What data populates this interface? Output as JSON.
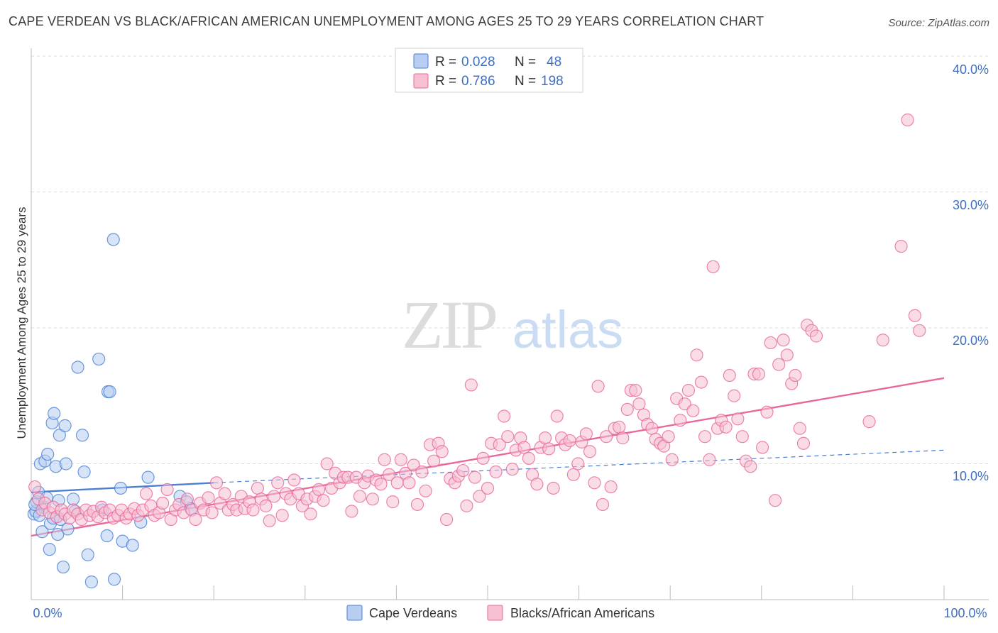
{
  "title": "CAPE VERDEAN VS BLACK/AFRICAN AMERICAN UNEMPLOYMENT AMONG AGES 25 TO 29 YEARS CORRELATION CHART",
  "source": "Source: ZipAtlas.com",
  "watermark": {
    "zip": "ZIP",
    "atlas": "atlas"
  },
  "colors": {
    "blue": "#4a7fd4",
    "blue_fill": "#b7cdf2",
    "pink": "#e8689b",
    "pink_fill": "#f6bfd2",
    "axis_label": "#3f6fc1",
    "grid": "#d9d9d9"
  },
  "chart_data": {
    "type": "scatter",
    "title": "CAPE VERDEAN VS BLACK/AFRICAN AMERICAN UNEMPLOYMENT AMONG AGES 25 TO 29 YEARS CORRELATION CHART",
    "xlabel": "",
    "ylabel": "Unemployment Among Ages 25 to 29 years",
    "xlim": [
      0,
      100
    ],
    "ylim": [
      0,
      40
    ],
    "x_tick_labels": [
      "0.0%",
      "100.0%"
    ],
    "y_ticks": [
      10,
      20,
      30,
      40
    ],
    "y_tick_labels": [
      "10.0%",
      "20.0%",
      "30.0%",
      "40.0%"
    ],
    "legend": [
      {
        "label": "R =",
        "r": "0.028",
        "n_label": "N =",
        "n": "48"
      },
      {
        "label": "R =",
        "r": "0.786",
        "n_label": "N =",
        "n": "198"
      }
    ],
    "series": [
      {
        "name": "Cape Verdeans",
        "color": "blue",
        "trend": {
          "x": [
            0,
            20
          ],
          "y": [
            7.9,
            8.6
          ]
        },
        "trend_extended": {
          "x": [
            20,
            100
          ],
          "y": [
            8.6,
            11.0
          ]
        },
        "points": [
          [
            0.3,
            6.3
          ],
          [
            0.5,
            6.5
          ],
          [
            0.6,
            7.2
          ],
          [
            0.8,
            7.9
          ],
          [
            1.0,
            10.0
          ],
          [
            1.2,
            5.0
          ],
          [
            1.4,
            6.8
          ],
          [
            1.5,
            10.2
          ],
          [
            1.7,
            7.5
          ],
          [
            1.8,
            10.7
          ],
          [
            2.0,
            3.7
          ],
          [
            2.1,
            5.6
          ],
          [
            2.3,
            13.0
          ],
          [
            2.4,
            6.0
          ],
          [
            2.5,
            13.7
          ],
          [
            2.7,
            9.8
          ],
          [
            2.9,
            4.8
          ],
          [
            3.1,
            12.1
          ],
          [
            3.2,
            5.9
          ],
          [
            3.5,
            2.4
          ],
          [
            3.7,
            12.8
          ],
          [
            3.8,
            10.0
          ],
          [
            4.0,
            5.2
          ],
          [
            4.6,
            7.4
          ],
          [
            5.1,
            17.1
          ],
          [
            5.6,
            12.1
          ],
          [
            5.8,
            9.4
          ],
          [
            6.2,
            3.3
          ],
          [
            6.6,
            1.3
          ],
          [
            7.4,
            17.7
          ],
          [
            7.8,
            6.6
          ],
          [
            8.3,
            4.7
          ],
          [
            8.4,
            15.3
          ],
          [
            8.6,
            15.3
          ],
          [
            9.0,
            26.5
          ],
          [
            9.1,
            1.5
          ],
          [
            9.8,
            8.2
          ],
          [
            10.0,
            4.3
          ],
          [
            11.1,
            4.0
          ],
          [
            12.0,
            5.7
          ],
          [
            12.8,
            9.0
          ],
          [
            16.3,
            7.6
          ],
          [
            17.0,
            7.2
          ],
          [
            17.5,
            6.7
          ],
          [
            0.9,
            6.2
          ],
          [
            4.8,
            6.5
          ],
          [
            0.4,
            7.0
          ],
          [
            3.0,
            7.3
          ]
        ]
      },
      {
        "name": "Blacks/African Americans",
        "color": "pink",
        "trend": {
          "x": [
            0,
            100
          ],
          "y": [
            4.7,
            16.3
          ]
        },
        "points": [
          [
            0.4,
            8.3
          ],
          [
            0.8,
            7.4
          ],
          [
            1.2,
            6.6
          ],
          [
            1.5,
            7.1
          ],
          [
            2.0,
            6.4
          ],
          [
            2.4,
            6.8
          ],
          [
            2.8,
            6.1
          ],
          [
            3.3,
            6.6
          ],
          [
            3.7,
            6.3
          ],
          [
            4.2,
            6.0
          ],
          [
            4.6,
            6.6
          ],
          [
            5.1,
            6.3
          ],
          [
            5.5,
            5.9
          ],
          [
            6.0,
            6.6
          ],
          [
            6.4,
            6.2
          ],
          [
            6.8,
            6.5
          ],
          [
            7.3,
            6.1
          ],
          [
            7.7,
            6.8
          ],
          [
            8.1,
            6.4
          ],
          [
            8.6,
            6.6
          ],
          [
            9.0,
            6.0
          ],
          [
            9.5,
            6.2
          ],
          [
            9.9,
            6.6
          ],
          [
            10.4,
            6.0
          ],
          [
            10.8,
            6.3
          ],
          [
            11.3,
            6.7
          ],
          [
            11.7,
            6.2
          ],
          [
            12.2,
            6.6
          ],
          [
            12.6,
            7.8
          ],
          [
            13.1,
            6.9
          ],
          [
            13.5,
            6.2
          ],
          [
            14.0,
            6.4
          ],
          [
            14.4,
            7.1
          ],
          [
            14.9,
            8.1
          ],
          [
            15.3,
            5.9
          ],
          [
            15.8,
            6.6
          ],
          [
            16.2,
            7.0
          ],
          [
            16.7,
            6.4
          ],
          [
            17.1,
            7.4
          ],
          [
            17.6,
            6.6
          ],
          [
            18.0,
            5.9
          ],
          [
            18.5,
            7.1
          ],
          [
            18.9,
            6.6
          ],
          [
            19.4,
            7.5
          ],
          [
            19.8,
            6.4
          ],
          [
            20.3,
            8.6
          ],
          [
            20.7,
            7.1
          ],
          [
            21.2,
            7.8
          ],
          [
            21.6,
            6.6
          ],
          [
            22.1,
            7.0
          ],
          [
            22.5,
            6.6
          ],
          [
            23.0,
            7.6
          ],
          [
            23.4,
            6.7
          ],
          [
            23.9,
            7.2
          ],
          [
            24.3,
            6.6
          ],
          [
            24.8,
            8.2
          ],
          [
            25.2,
            7.4
          ],
          [
            25.7,
            6.9
          ],
          [
            26.1,
            5.8
          ],
          [
            26.6,
            7.6
          ],
          [
            27.0,
            8.6
          ],
          [
            27.5,
            6.2
          ],
          [
            27.9,
            7.8
          ],
          [
            28.4,
            7.4
          ],
          [
            28.8,
            8.8
          ],
          [
            29.3,
            7.8
          ],
          [
            29.7,
            6.9
          ],
          [
            30.2,
            7.4
          ],
          [
            30.6,
            6.3
          ],
          [
            31.1,
            7.6
          ],
          [
            31.5,
            8.1
          ],
          [
            32.0,
            7.3
          ],
          [
            32.4,
            10.0
          ],
          [
            32.9,
            8.2
          ],
          [
            33.3,
            9.3
          ],
          [
            33.8,
            8.6
          ],
          [
            34.2,
            9.0
          ],
          [
            34.7,
            9.0
          ],
          [
            35.1,
            6.5
          ],
          [
            35.6,
            9.0
          ],
          [
            36.0,
            7.6
          ],
          [
            36.5,
            8.6
          ],
          [
            36.9,
            9.1
          ],
          [
            37.4,
            7.4
          ],
          [
            37.8,
            8.8
          ],
          [
            38.3,
            8.5
          ],
          [
            38.7,
            10.3
          ],
          [
            39.2,
            9.2
          ],
          [
            39.6,
            7.2
          ],
          [
            40.1,
            8.6
          ],
          [
            40.5,
            10.3
          ],
          [
            41.0,
            9.3
          ],
          [
            41.4,
            8.6
          ],
          [
            41.9,
            9.9
          ],
          [
            42.3,
            7.0
          ],
          [
            42.8,
            9.4
          ],
          [
            43.2,
            8.0
          ],
          [
            43.7,
            11.4
          ],
          [
            44.1,
            10.2
          ],
          [
            44.6,
            11.5
          ],
          [
            45.0,
            10.9
          ],
          [
            45.5,
            5.9
          ],
          [
            45.9,
            8.9
          ],
          [
            46.4,
            8.6
          ],
          [
            46.8,
            9.1
          ],
          [
            47.3,
            9.5
          ],
          [
            47.7,
            6.9
          ],
          [
            48.2,
            15.8
          ],
          [
            48.6,
            9.0
          ],
          [
            49.1,
            7.6
          ],
          [
            49.5,
            10.4
          ],
          [
            50.0,
            8.2
          ],
          [
            50.4,
            11.5
          ],
          [
            50.9,
            9.4
          ],
          [
            51.3,
            11.4
          ],
          [
            51.8,
            13.5
          ],
          [
            52.2,
            12.0
          ],
          [
            52.7,
            9.6
          ],
          [
            53.1,
            11.0
          ],
          [
            53.6,
            11.9
          ],
          [
            54.0,
            11.2
          ],
          [
            54.5,
            10.4
          ],
          [
            54.9,
            9.2
          ],
          [
            55.4,
            8.5
          ],
          [
            55.8,
            11.2
          ],
          [
            56.3,
            11.9
          ],
          [
            56.7,
            11.1
          ],
          [
            57.2,
            8.2
          ],
          [
            57.6,
            13.5
          ],
          [
            58.1,
            11.9
          ],
          [
            58.5,
            11.4
          ],
          [
            59.0,
            11.7
          ],
          [
            59.4,
            9.2
          ],
          [
            59.9,
            10.0
          ],
          [
            60.3,
            11.6
          ],
          [
            60.8,
            12.2
          ],
          [
            61.2,
            10.9
          ],
          [
            61.7,
            8.6
          ],
          [
            62.1,
            15.7
          ],
          [
            62.6,
            7.0
          ],
          [
            63.0,
            12.0
          ],
          [
            63.5,
            8.3
          ],
          [
            63.9,
            12.6
          ],
          [
            64.4,
            12.7
          ],
          [
            64.8,
            11.9
          ],
          [
            65.3,
            14.0
          ],
          [
            65.7,
            15.4
          ],
          [
            66.2,
            15.4
          ],
          [
            66.6,
            14.4
          ],
          [
            67.1,
            13.6
          ],
          [
            67.5,
            12.9
          ],
          [
            68.0,
            12.6
          ],
          [
            68.4,
            11.8
          ],
          [
            68.9,
            11.5
          ],
          [
            69.3,
            11.3
          ],
          [
            69.8,
            12.0
          ],
          [
            70.2,
            10.3
          ],
          [
            70.7,
            14.8
          ],
          [
            71.1,
            13.2
          ],
          [
            71.6,
            14.4
          ],
          [
            72.0,
            15.4
          ],
          [
            72.5,
            13.9
          ],
          [
            72.9,
            18.0
          ],
          [
            73.4,
            16.0
          ],
          [
            73.8,
            12.0
          ],
          [
            74.3,
            10.3
          ],
          [
            74.7,
            24.5
          ],
          [
            75.2,
            12.6
          ],
          [
            75.6,
            13.2
          ],
          [
            76.1,
            12.7
          ],
          [
            76.5,
            16.5
          ],
          [
            77.0,
            15.0
          ],
          [
            77.4,
            13.3
          ],
          [
            77.9,
            12.0
          ],
          [
            78.3,
            10.2
          ],
          [
            78.8,
            9.8
          ],
          [
            79.2,
            16.6
          ],
          [
            79.7,
            16.6
          ],
          [
            80.1,
            11.2
          ],
          [
            80.6,
            13.8
          ],
          [
            81.0,
            18.9
          ],
          [
            81.5,
            7.3
          ],
          [
            81.9,
            17.3
          ],
          [
            82.4,
            19.1
          ],
          [
            82.8,
            18.0
          ],
          [
            83.3,
            15.9
          ],
          [
            83.7,
            16.5
          ],
          [
            84.2,
            12.6
          ],
          [
            84.6,
            11.5
          ],
          [
            85.0,
            20.2
          ],
          [
            85.5,
            19.8
          ],
          [
            86.0,
            19.4
          ],
          [
            96.0,
            35.3
          ],
          [
            95.3,
            26.0
          ],
          [
            96.8,
            20.9
          ],
          [
            97.3,
            19.8
          ],
          [
            93.3,
            19.1
          ],
          [
            91.8,
            13.1
          ]
        ]
      }
    ]
  },
  "bottom_legend": [
    "Cape Verdeans",
    "Blacks/African Americans"
  ]
}
